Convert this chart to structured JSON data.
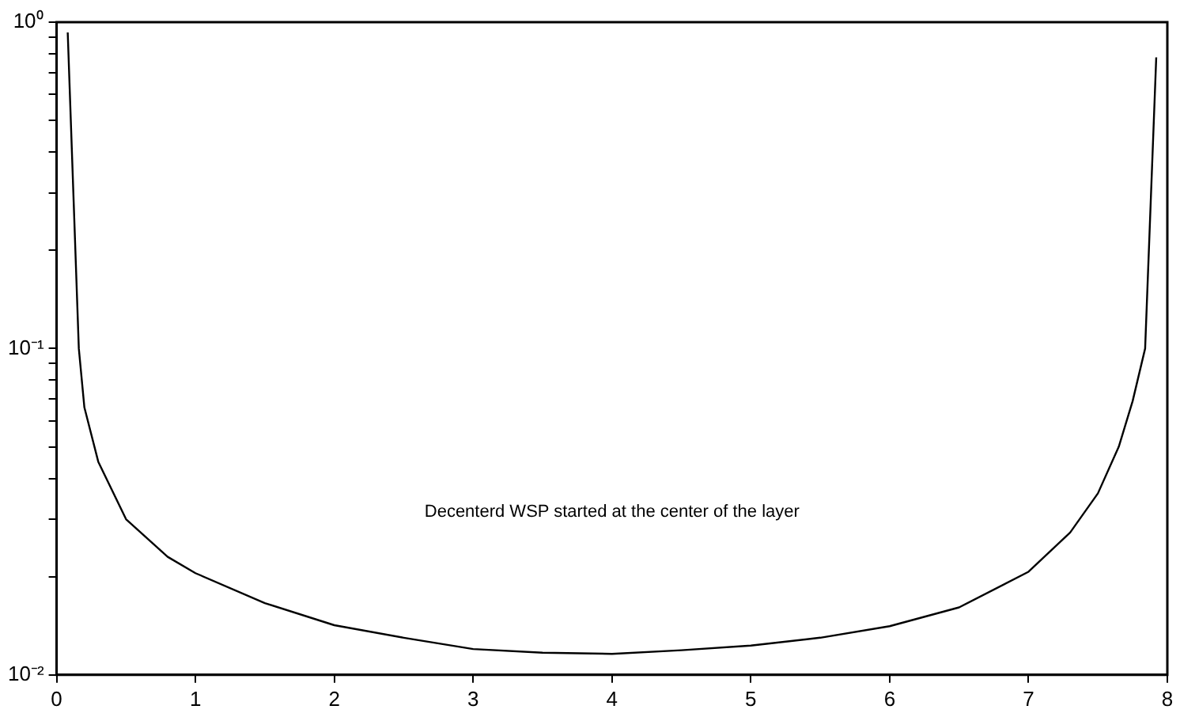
{
  "chart_data": {
    "type": "line",
    "annotations": [
      "Decenterd WSP started at the center of the layer"
    ],
    "x": [
      0.08,
      0.16,
      0.2,
      0.3,
      0.5,
      0.8,
      1,
      1.5,
      2,
      2.5,
      3,
      3.5,
      4,
      4.5,
      5,
      5.5,
      6,
      6.5,
      7,
      7.3,
      7.5,
      7.65,
      7.75,
      7.84,
      7.92
    ],
    "series": [
      {
        "color": "#000000",
        "values": [
          0.93,
          0.1,
          0.066,
          0.045,
          0.03,
          0.023,
          0.0205,
          0.0166,
          0.0142,
          0.013,
          0.012,
          0.0117,
          0.0116,
          0.0119,
          0.0123,
          0.013,
          0.0141,
          0.0161,
          0.0207,
          0.0273,
          0.036,
          0.05,
          0.069,
          0.1,
          0.78
        ]
      }
    ],
    "xlim": [
      0,
      8
    ],
    "xticks": [
      0,
      1,
      2,
      3,
      4,
      5,
      6,
      7,
      8
    ],
    "ylim": [
      0.01,
      1
    ],
    "log": true,
    "yticks": [
      {
        "value": 0.01,
        "label": "10⁻²"
      },
      {
        "value": 0.02,
        "label": null
      },
      {
        "value": 0.03,
        "label": null
      },
      {
        "value": 0.04,
        "label": null
      },
      {
        "value": 0.05,
        "label": null
      },
      {
        "value": 0.06,
        "label": null
      },
      {
        "value": 0.07,
        "label": null
      },
      {
        "value": 0.08,
        "label": null
      },
      {
        "value": 0.09,
        "label": null
      },
      {
        "value": 0.1,
        "label": "10⁻¹"
      },
      {
        "value": 0.2,
        "label": null
      },
      {
        "value": 0.3,
        "label": null
      },
      {
        "value": 0.4,
        "label": null
      },
      {
        "value": 0.5,
        "label": null
      },
      {
        "value": 0.6,
        "label": null
      },
      {
        "value": 0.7,
        "label": null
      },
      {
        "value": 0.8,
        "label": null
      },
      {
        "value": 0.9,
        "label": null
      },
      {
        "value": 1,
        "label": "10⁰"
      }
    ],
    "grid": false,
    "legend": false,
    "marker": "none",
    "line_style": "solid"
  }
}
